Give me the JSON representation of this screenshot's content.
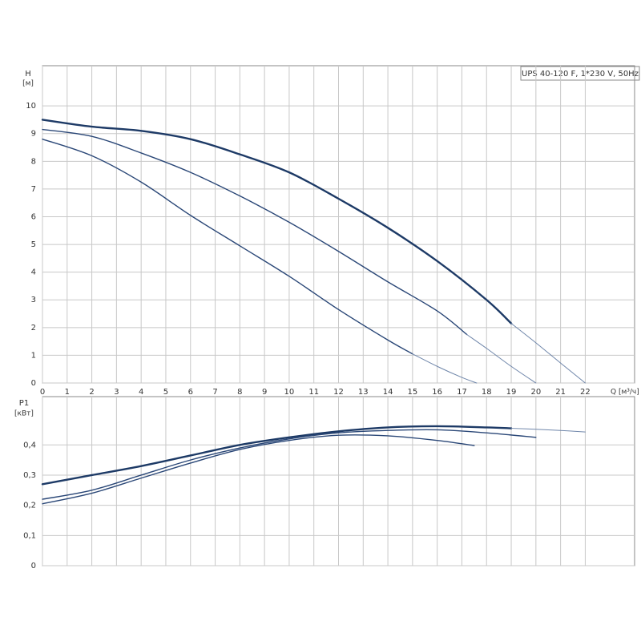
{
  "chart_data": [
    {
      "type": "line",
      "title": "UPS 40-120 F, 1*230 V, 50Hz",
      "y_label": "H",
      "y_unit": "[м]",
      "x_label": "Q [м³/ч]",
      "xlim": [
        0,
        24
      ],
      "xticks": [
        0,
        1,
        2,
        3,
        4,
        5,
        6,
        7,
        8,
        9,
        10,
        11,
        12,
        13,
        14,
        15,
        16,
        17,
        18,
        19,
        20,
        21,
        22
      ],
      "ylim": [
        0,
        11.45
      ],
      "yticks": [
        0,
        1,
        2,
        3,
        4,
        5,
        6,
        7,
        8,
        9,
        10
      ],
      "grid": true,
      "series": [
        {
          "color": "#1d3a66",
          "line_width": 2.4,
          "x": [
            0,
            2,
            4,
            6,
            8,
            10,
            12,
            14,
            16,
            18,
            19
          ],
          "values": [
            9.5,
            9.25,
            9.1,
            8.8,
            8.25,
            7.6,
            6.65,
            5.6,
            4.4,
            3.0,
            2.15
          ]
        },
        {
          "color": "#6f86aa",
          "line_width": 1,
          "x": [
            19,
            20,
            21,
            22
          ],
          "values": [
            2.15,
            1.45,
            0.72,
            0
          ]
        },
        {
          "color": "#2a4777",
          "line_width": 1.4,
          "x": [
            0,
            2,
            4,
            6,
            8,
            10,
            12,
            14,
            16,
            17.2
          ],
          "values": [
            9.15,
            8.9,
            8.3,
            7.6,
            6.75,
            5.8,
            4.75,
            3.65,
            2.6,
            1.75
          ]
        },
        {
          "color": "#6f86aa",
          "line_width": 1,
          "x": [
            17.2,
            18,
            19,
            20
          ],
          "values": [
            1.75,
            1.25,
            0.6,
            0
          ]
        },
        {
          "color": "#2a4777",
          "line_width": 1.4,
          "x": [
            0,
            2,
            4,
            6,
            8,
            10,
            12,
            14,
            15
          ],
          "values": [
            8.8,
            8.2,
            7.25,
            6.05,
            4.95,
            3.85,
            2.65,
            1.55,
            1.05
          ]
        },
        {
          "color": "#6f86aa",
          "line_width": 1,
          "x": [
            15,
            16,
            17,
            17.6
          ],
          "values": [
            1.05,
            0.6,
            0.2,
            0
          ]
        }
      ]
    },
    {
      "type": "line",
      "y_label": "P1",
      "y_unit": "[кВт]",
      "xlim": [
        0,
        24
      ],
      "ylim": [
        0,
        0.56
      ],
      "yticks": [
        0,
        {
          "value": 0.1,
          "label": "0,1"
        },
        {
          "value": 0.2,
          "label": "0,2"
        },
        {
          "value": 0.3,
          "label": "0,3"
        },
        {
          "value": 0.4,
          "label": "0,4"
        }
      ],
      "grid": true,
      "series": [
        {
          "color": "#1d3a66",
          "line_width": 2.4,
          "x": [
            0,
            2,
            4,
            6,
            8,
            10,
            12,
            14,
            16,
            18,
            19
          ],
          "values": [
            0.27,
            0.3,
            0.33,
            0.365,
            0.4,
            0.425,
            0.445,
            0.458,
            0.462,
            0.458,
            0.455
          ]
        },
        {
          "color": "#6f86aa",
          "line_width": 1,
          "x": [
            19,
            20,
            21,
            22
          ],
          "values": [
            0.455,
            0.452,
            0.448,
            0.443
          ]
        },
        {
          "color": "#2a4777",
          "line_width": 1.4,
          "x": [
            0,
            2,
            4,
            6,
            8,
            10,
            12,
            14,
            16,
            18,
            20
          ],
          "values": [
            0.22,
            0.25,
            0.3,
            0.35,
            0.39,
            0.42,
            0.44,
            0.448,
            0.45,
            0.44,
            0.425
          ]
        },
        {
          "color": "#2a4777",
          "line_width": 1.4,
          "x": [
            0,
            2,
            4,
            6,
            8,
            10,
            12,
            14,
            16,
            17.5
          ],
          "values": [
            0.205,
            0.24,
            0.29,
            0.34,
            0.385,
            0.415,
            0.432,
            0.43,
            0.415,
            0.398
          ]
        }
      ]
    }
  ]
}
